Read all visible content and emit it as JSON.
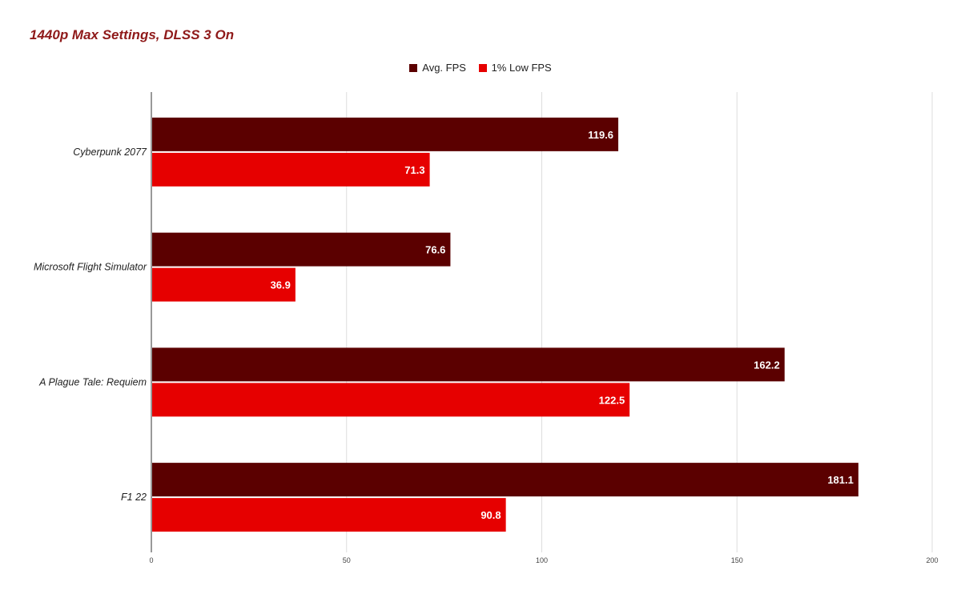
{
  "chart_data": {
    "type": "bar",
    "orientation": "horizontal",
    "title": "1440p Max Settings, DLSS 3 On",
    "categories": [
      "Cyberpunk 2077",
      "Microsoft Flight Simulator",
      "A Plague Tale: Requiem",
      "F1 22"
    ],
    "series": [
      {
        "name": "Avg. FPS",
        "color": "#5b0000",
        "values": [
          119.6,
          76.6,
          162.2,
          181.1
        ]
      },
      {
        "name": "1% Low FPS",
        "color": "#e60000",
        "values": [
          71.3,
          36.9,
          122.5,
          90.8
        ]
      }
    ],
    "xlim": [
      0,
      200
    ],
    "xticks": [
      0,
      50,
      100,
      150,
      200
    ],
    "grid": true,
    "legend": "top-center",
    "xlabel": "",
    "ylabel": ""
  }
}
